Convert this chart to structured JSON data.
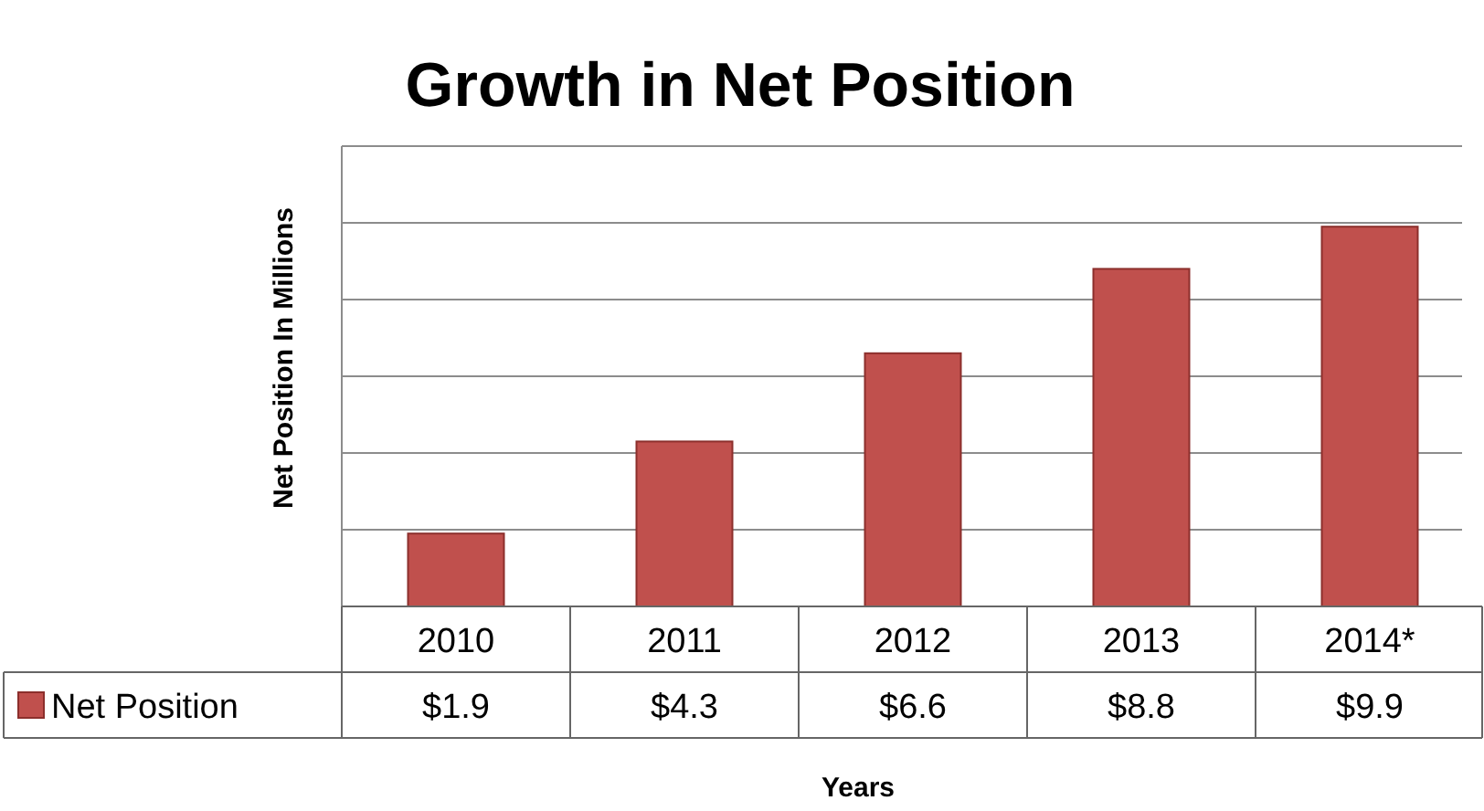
{
  "chart_data": {
    "type": "bar",
    "title": "Growth in Net Position",
    "xlabel": "Years",
    "ylabel": "Net Position In Millions",
    "categories": [
      "2010",
      "2011",
      "2012",
      "2013",
      "2014*"
    ],
    "series": [
      {
        "name": "Net Position",
        "color": "#c0504d",
        "values": [
          1.9,
          4.3,
          6.6,
          8.8,
          9.9
        ],
        "value_labels": [
          "$1.9",
          "$4.3",
          "$6.6",
          "$8.8",
          "$9.9"
        ]
      }
    ],
    "ylim": [
      0,
      12
    ],
    "yticks": [
      {
        "value": 0,
        "label": null
      },
      {
        "value": 2,
        "label": null
      },
      {
        "value": 4,
        "label": null
      },
      {
        "value": 6,
        "label": null
      },
      {
        "value": 8,
        "label": null
      },
      {
        "value": 10,
        "label": null
      },
      {
        "value": 12,
        "label": null
      }
    ],
    "grid": "y",
    "tick_labels": "x",
    "legend": "bottom"
  }
}
